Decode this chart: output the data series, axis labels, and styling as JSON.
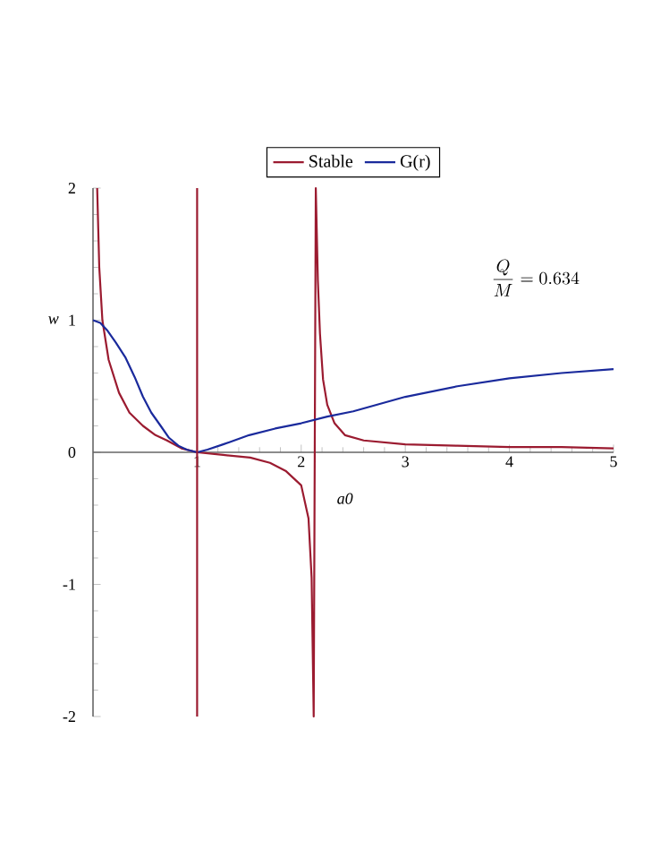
{
  "chart_data": {
    "type": "line",
    "xlabel": "a0",
    "ylabel": "w",
    "xlim": [
      0,
      5
    ],
    "ylim": [
      -2,
      2
    ],
    "xticks": [
      1,
      2,
      3,
      4,
      5
    ],
    "yticks": [
      -2,
      -1,
      0,
      1,
      2
    ],
    "legend": "top",
    "grid": false,
    "annotations": [
      "\\frac{Q}{M} = 0.634"
    ],
    "ref_lines": [
      {
        "axis": "x",
        "value": 1,
        "color": "#9b1b30"
      }
    ],
    "series": [
      {
        "name": "Stable",
        "color": "#9b1b30",
        "x": [
          0.04,
          0.06,
          0.09,
          0.15,
          0.25,
          0.35,
          0.48,
          0.6,
          0.71,
          0.85,
          1.0,
          1.25,
          1.51,
          1.7,
          1.85,
          2.0,
          2.07,
          2.1,
          2.12,
          2.14,
          2.16,
          2.18,
          2.21,
          2.25,
          2.32,
          2.42,
          2.6,
          3.0,
          3.5,
          4.0,
          4.5,
          5.0
        ],
        "values": [
          2.0,
          1.4,
          1.0,
          0.7,
          0.45,
          0.3,
          0.2,
          0.13,
          0.09,
          0.03,
          0.0,
          -0.02,
          -0.04,
          -0.08,
          -0.14,
          -0.25,
          -0.5,
          -0.95,
          -2.0,
          2.0,
          1.3,
          0.9,
          0.55,
          0.36,
          0.22,
          0.13,
          0.09,
          0.06,
          0.05,
          0.04,
          0.04,
          0.03
        ]
      },
      {
        "name": "G(r)",
        "color": "#1a2a9c",
        "x": [
          0.0,
          0.07,
          0.14,
          0.22,
          0.31,
          0.4,
          0.48,
          0.56,
          0.65,
          0.73,
          0.82,
          0.9,
          1.0,
          1.1,
          1.25,
          1.5,
          1.75,
          2.0,
          2.25,
          2.5,
          3.0,
          3.5,
          4.0,
          4.5,
          5.0
        ],
        "values": [
          1.0,
          0.98,
          0.92,
          0.83,
          0.72,
          0.57,
          0.42,
          0.3,
          0.2,
          0.11,
          0.05,
          0.02,
          0.0,
          0.02,
          0.06,
          0.13,
          0.18,
          0.22,
          0.27,
          0.31,
          0.42,
          0.5,
          0.56,
          0.6,
          0.63
        ]
      }
    ]
  }
}
